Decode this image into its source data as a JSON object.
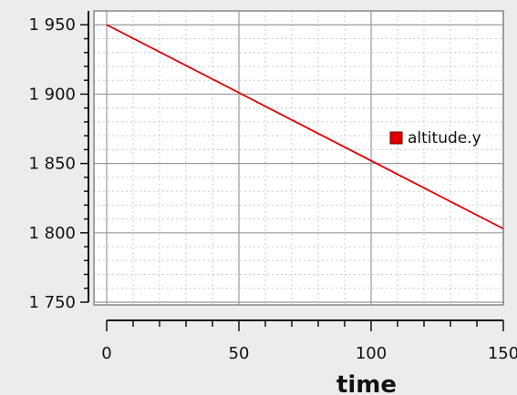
{
  "chart_data": {
    "type": "line",
    "title": "",
    "xlabel": "time",
    "ylabel": "",
    "xlim": [
      0,
      150
    ],
    "ylim": [
      1750,
      1960
    ],
    "x_ticks": [
      0,
      50,
      100,
      150
    ],
    "x_tick_labels": [
      "0",
      "50",
      "100",
      "150"
    ],
    "y_ticks": [
      1750,
      1800,
      1850,
      1900,
      1950
    ],
    "y_tick_labels": [
      "1 750",
      "1 800",
      "1 850",
      "1 900",
      "1 950"
    ],
    "grid": true,
    "legend_position": "right",
    "series": [
      {
        "name": "altitude.y",
        "color": "#e00000",
        "x": [
          0,
          150
        ],
        "y": [
          1950,
          1803
        ]
      }
    ]
  }
}
